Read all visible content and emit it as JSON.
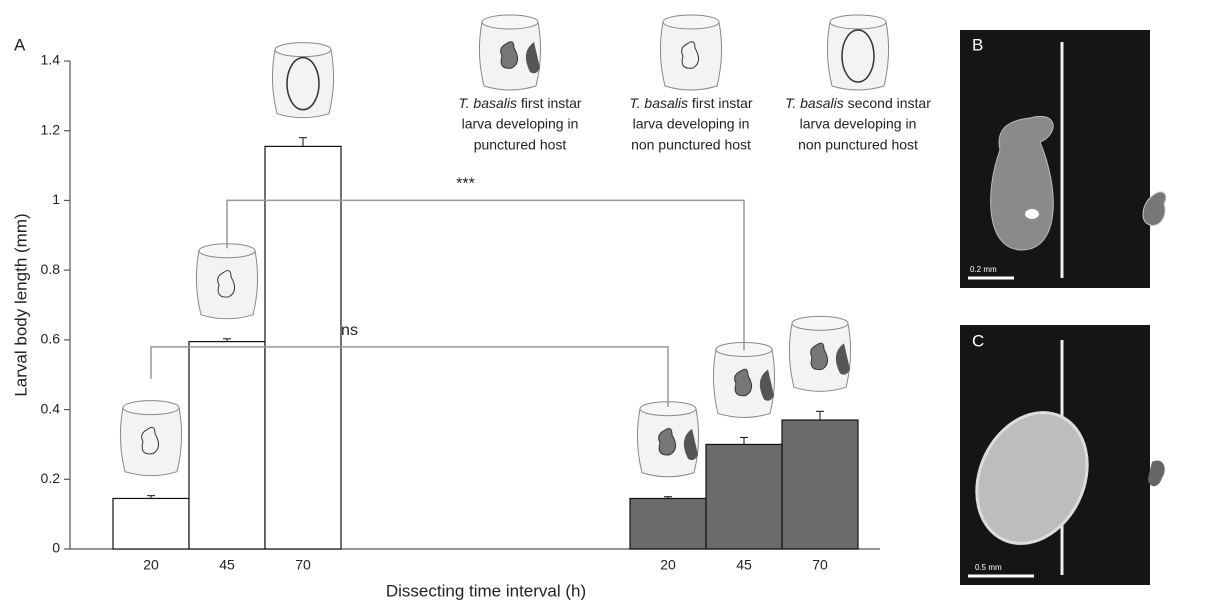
{
  "chart_data": {
    "type": "bar",
    "panel_label": "A",
    "ylabel": "Larval body length (mm)",
    "xlabel": "Dissecting time interval (h)",
    "categories": [
      "20",
      "45",
      "70",
      "20",
      "45",
      "70"
    ],
    "series": [
      {
        "color": "#ffffff",
        "values": [
          0.145,
          0.595,
          1.155,
          null,
          null,
          null
        ],
        "errors": [
          0.008,
          0.008,
          0.025,
          null,
          null,
          null
        ]
      },
      {
        "color": "#6b6b6b",
        "values": [
          null,
          null,
          null,
          0.145,
          0.3,
          0.37
        ],
        "errors": [
          null,
          null,
          null,
          0.005,
          0.02,
          0.025
        ]
      }
    ],
    "ylim": [
      0,
      1.4
    ],
    "yticks": [
      0,
      0.2,
      0.4,
      0.6,
      0.8,
      1,
      1.2,
      1.4
    ],
    "significance": [
      {
        "text": "ns",
        "from": 0,
        "to": 3
      },
      {
        "text": "***",
        "from": 1,
        "to": 4
      }
    ],
    "annotations": [
      {
        "species": "T. basalis",
        "lines": [
          "first instar",
          "larva developing in",
          "punctured host"
        ]
      },
      {
        "species": "T. basalis",
        "lines": [
          "first instar",
          "larva developing in",
          "non punctured host"
        ]
      },
      {
        "species": "T. basalis",
        "lines": [
          "second instar",
          "larva developing in",
          "non punctured host"
        ]
      }
    ]
  },
  "photos": [
    {
      "label": "B",
      "scale_bar": "0.2 mm"
    },
    {
      "label": "C",
      "scale_bar": "0.5 mm"
    }
  ]
}
